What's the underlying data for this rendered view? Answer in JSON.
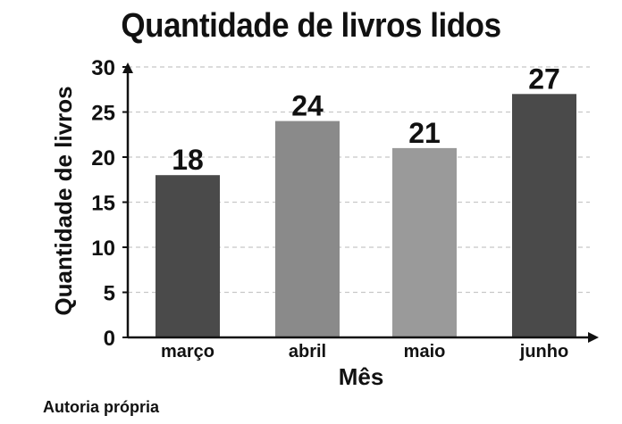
{
  "chart_data": {
    "type": "bar",
    "title": "Quantidade de livros lidos",
    "xlabel": "Mês",
    "ylabel": "Quantidade de livros",
    "categories": [
      "março",
      "abril",
      "maio",
      "junho"
    ],
    "values": [
      18,
      24,
      21,
      27
    ],
    "ylim": [
      0,
      30
    ],
    "yticks": [
      0,
      5,
      10,
      15,
      20,
      25,
      30
    ],
    "grid": true,
    "bar_colors": [
      "#4a4a4a",
      "#8a8a8a",
      "#9a9a9a",
      "#4a4a4a"
    ]
  },
  "source": "Autoria própria"
}
